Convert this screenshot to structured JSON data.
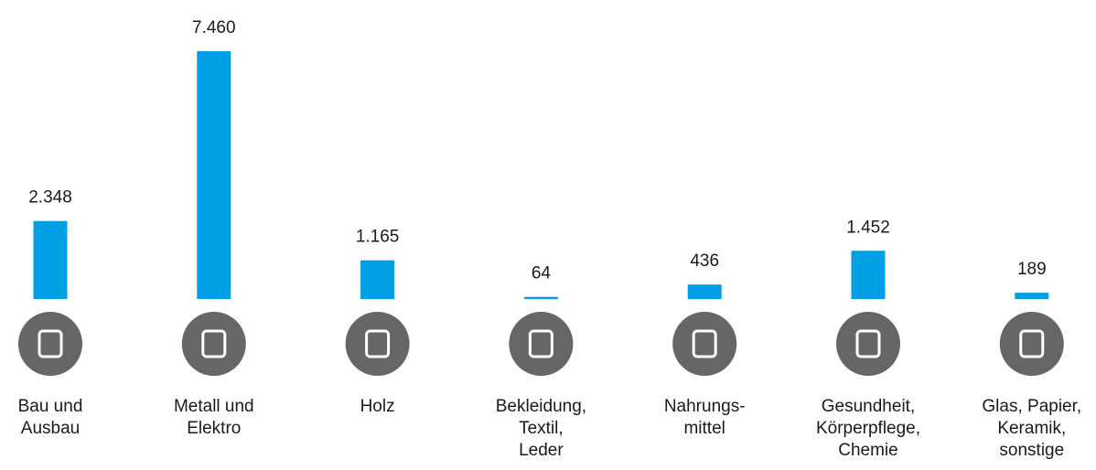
{
  "chart_data": {
    "type": "bar",
    "categories": [
      [
        "Bau und",
        "Ausbau"
      ],
      [
        "Metall und",
        "Elektro"
      ],
      [
        "Holz"
      ],
      [
        "Bekleidung,",
        "Textil,",
        "Leder"
      ],
      [
        "Nahrungs-",
        "mittel"
      ],
      [
        "Gesundheit,",
        "Körperpflege,",
        "Chemie"
      ],
      [
        "Glas, Papier,",
        "Keramik,",
        "sonstige"
      ]
    ],
    "values": [
      2348,
      7460,
      1165,
      64,
      436,
      1452,
      189
    ],
    "value_labels": [
      "2.348",
      "7.460",
      "1.165",
      "64",
      "436",
      "1.452",
      "189"
    ],
    "color": "#009fe3"
  }
}
